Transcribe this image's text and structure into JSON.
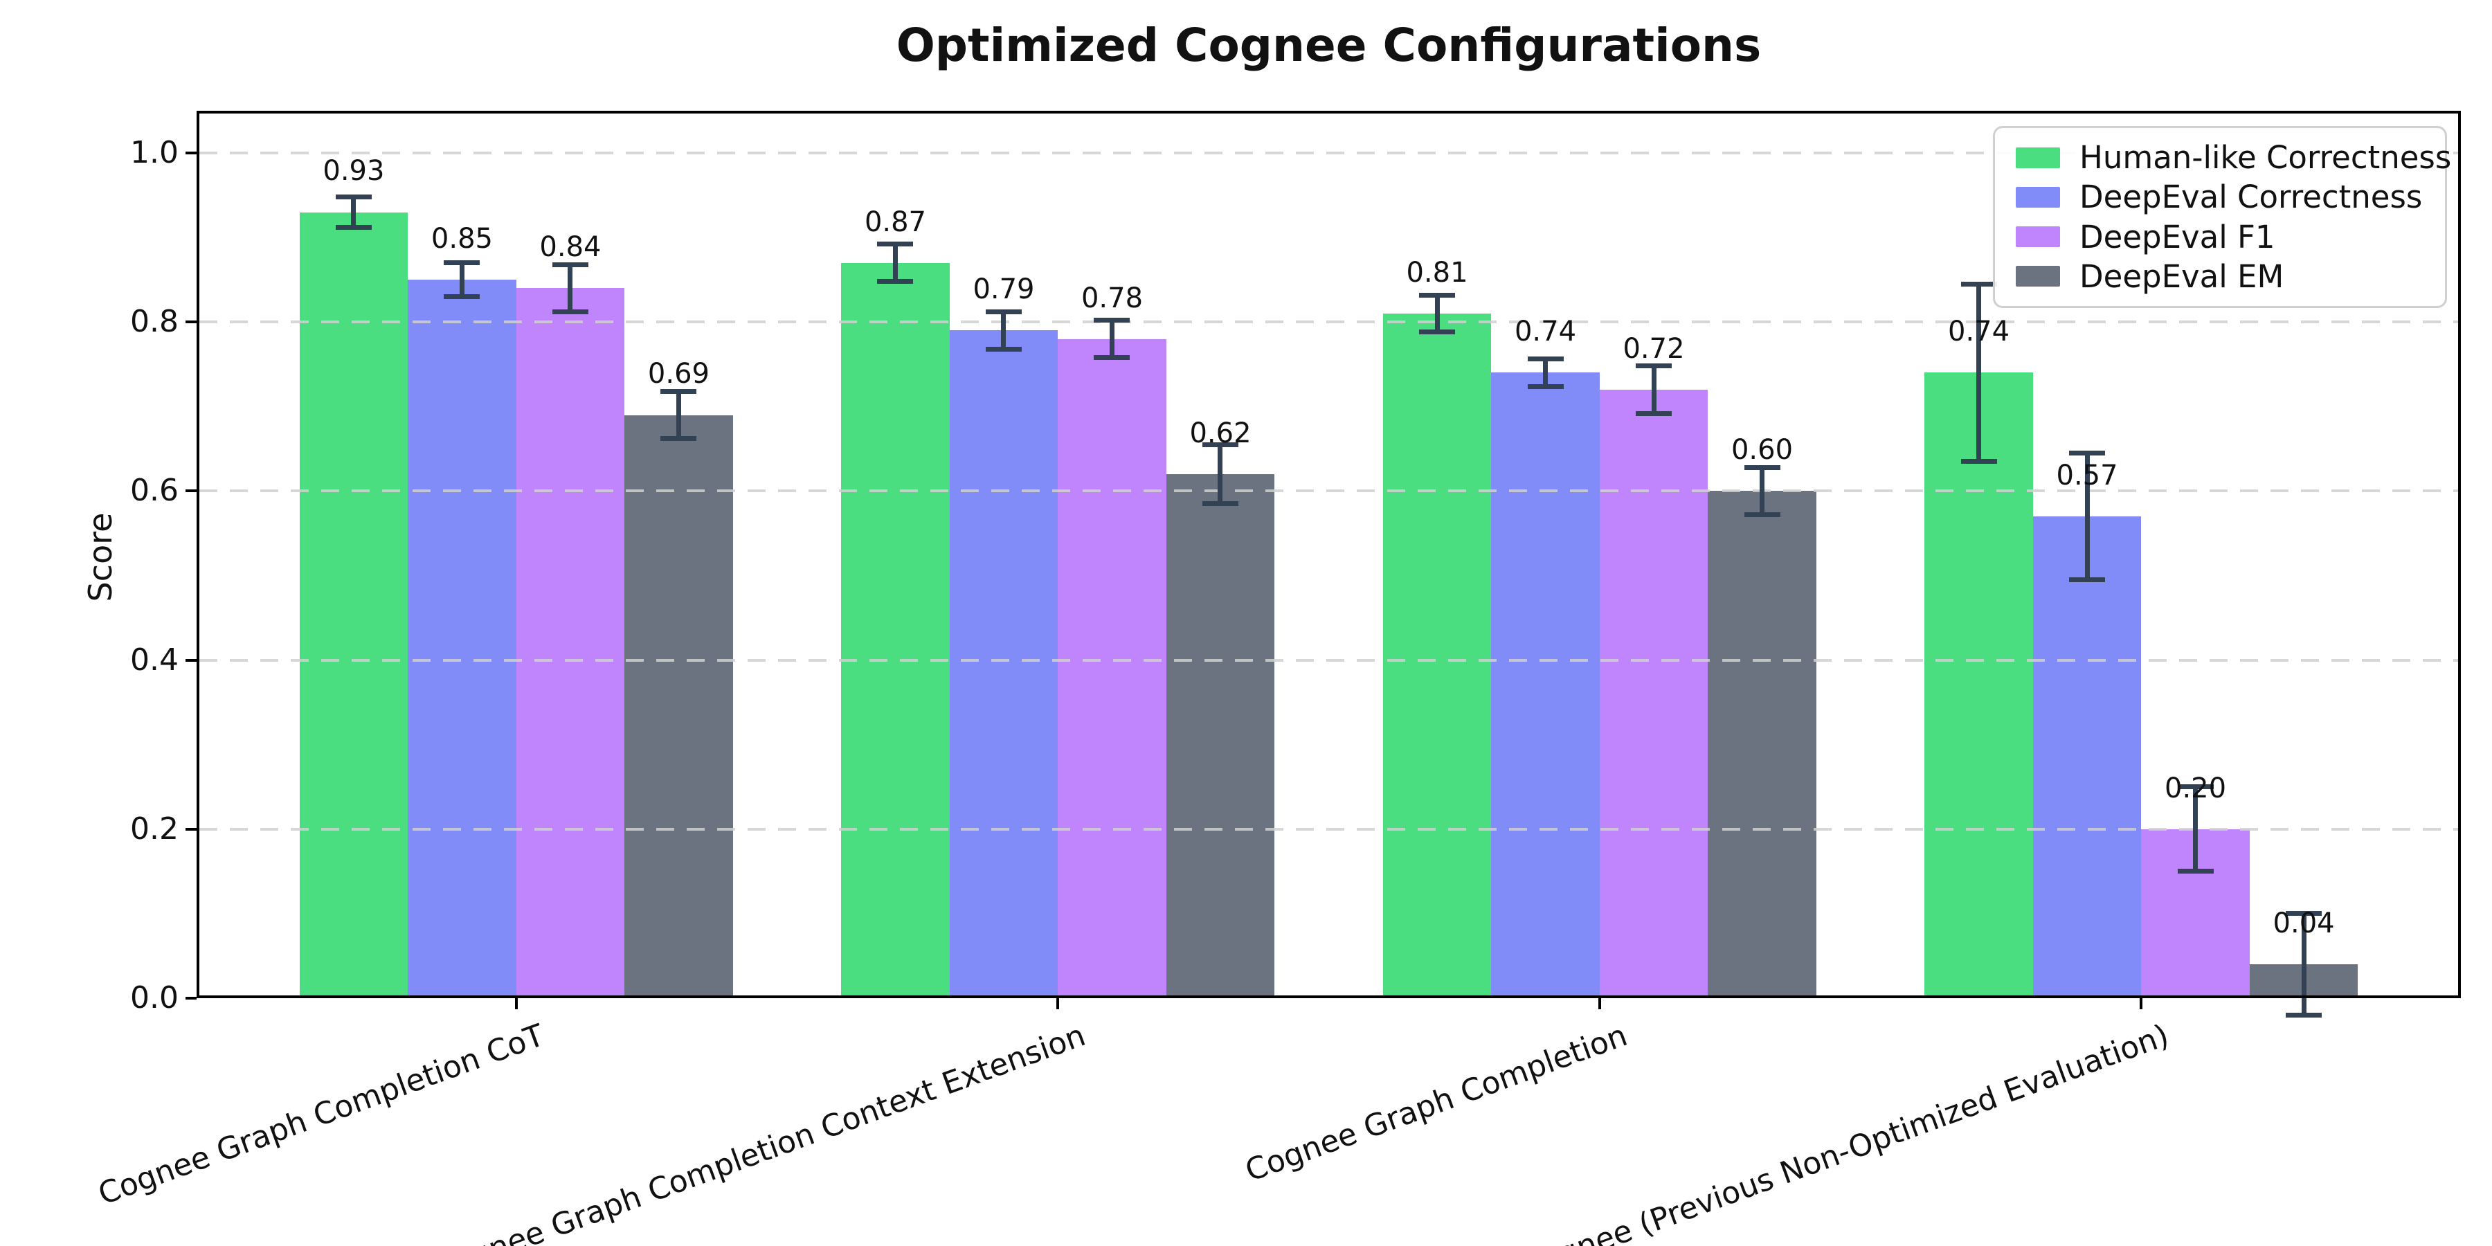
{
  "title": "Optimized Cognee Configurations",
  "chart_data": {
    "type": "bar",
    "title": "Optimized Cognee Configurations",
    "xlabel": "",
    "ylabel": "Score",
    "ylim": [
      0,
      1.05
    ],
    "yticks": [
      0.0,
      0.2,
      0.4,
      0.6,
      0.8,
      1.0
    ],
    "grid": "horizontal dashed, drawn over bars",
    "legend_position": "upper right",
    "x_tick_rotation_deg": 20,
    "categories": [
      "Cognee Graph Completion CoT",
      "Cognee Graph Completion Context Extension",
      "Cognee Graph Completion",
      "Cognee (Previous Non-Optimized Evaluation)"
    ],
    "series": [
      {
        "name": "Human-like Correctness",
        "color": "#4ade80",
        "values": [
          0.93,
          0.87,
          0.81,
          0.74
        ],
        "errors": [
          0.018,
          0.022,
          0.022,
          0.105
        ]
      },
      {
        "name": "DeepEval Correctness",
        "color": "#818cf8",
        "values": [
          0.85,
          0.79,
          0.74,
          0.57
        ],
        "errors": [
          0.02,
          0.022,
          0.016,
          0.075
        ]
      },
      {
        "name": "DeepEval F1",
        "color": "#c084fc",
        "values": [
          0.84,
          0.78,
          0.72,
          0.2
        ],
        "errors": [
          0.028,
          0.022,
          0.028,
          0.05
        ]
      },
      {
        "name": "DeepEval EM",
        "color": "#6b7280",
        "values": [
          0.69,
          0.62,
          0.6,
          0.04
        ],
        "errors": [
          0.028,
          0.035,
          0.028,
          0.06
        ]
      }
    ],
    "bar_value_labels": [
      [
        "0.93",
        "0.85",
        "0.84",
        "0.69"
      ],
      [
        "0.87",
        "0.79",
        "0.78",
        "0.62"
      ],
      [
        "0.81",
        "0.74",
        "0.72",
        "0.60"
      ],
      [
        "0.74",
        "0.57",
        "0.20",
        "0.04"
      ]
    ],
    "colors": {
      "error_bar": "#334155",
      "gridline": "#d4d4d4",
      "axis": "#000000",
      "text": "#111111",
      "background": "#ffffff",
      "legend_border": "#d0d0d0"
    }
  }
}
